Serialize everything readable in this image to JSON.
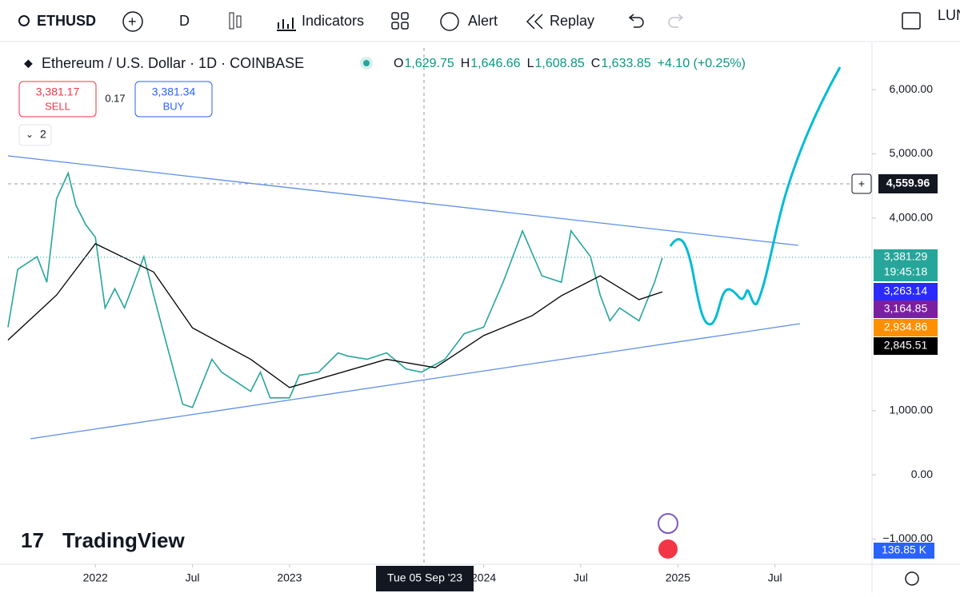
{
  "toolbar": {
    "symbol": "ETHUSD",
    "interval": "D",
    "indicators": "Indicators",
    "alert": "Alert",
    "replay": "Replay",
    "right_text": "LUN"
  },
  "legend": {
    "title": "Ethereum / U.S. Dollar · 1D · COINBASE",
    "ohlc": [
      {
        "key": "O",
        "value": "1,629.75"
      },
      {
        "key": "H",
        "value": "1,646.66"
      },
      {
        "key": "L",
        "value": "1,608.85"
      },
      {
        "key": "C",
        "value": "1,633.85"
      }
    ],
    "change": "+4.10 (+0.25%)",
    "sell_price": "3,381.17",
    "sell": "SELL",
    "spread": "0.17",
    "buy_price": "3,381.34",
    "buy": "BUY",
    "indicator_count": "2"
  },
  "price_tags": {
    "crosshair": "4,559.96",
    "last": "3,381.29",
    "countdown": "19:45:18",
    "ma1": "3,263.14",
    "ma2": "3,164.85",
    "ma3": "2,934.86",
    "ma4": "2,845.51",
    "volume": "136.85 K"
  },
  "crosshair_date": "Tue 05 Sep '23",
  "logo": "TradingView",
  "chart_data": {
    "type": "line",
    "xlim": [
      2021.55,
      2026.0
    ],
    "xticks": [
      {
        "value": 2022,
        "label": "2022"
      },
      {
        "value": 2022.5,
        "label": "Jul"
      },
      {
        "value": 2023,
        "label": "2023"
      },
      {
        "value": 2024,
        "label": "2024"
      },
      {
        "value": 2024.5,
        "label": "Jul"
      },
      {
        "value": 2025,
        "label": "2025"
      },
      {
        "value": 2025.5,
        "label": "Jul"
      }
    ],
    "ylim": [
      -1380,
      6650
    ],
    "yticks": [
      {
        "value": 6000,
        "label": "6,000.00"
      },
      {
        "value": 5000,
        "label": "5,000.00"
      },
      {
        "value": 4000,
        "label": "4,000.00"
      },
      {
        "value": 1000,
        "label": "1,000.00"
      },
      {
        "value": 0,
        "label": "0.00"
      },
      {
        "value": -1000,
        "label": "−1,000.00"
      }
    ],
    "series": [
      {
        "x": [
          2021.55,
          2021.6,
          2021.7,
          2021.75,
          2021.8,
          2021.86,
          2021.9,
          2021.95,
          2022.0,
          2022.05,
          2022.1,
          2022.15,
          2022.25,
          2022.3,
          2022.37,
          2022.45,
          2022.5,
          2022.6,
          2022.65,
          2022.7,
          2022.8,
          2022.85,
          2022.9,
          2023.0,
          2023.05,
          2023.15,
          2023.25,
          2023.3,
          2023.4,
          2023.5,
          2023.6,
          2023.68,
          2023.8,
          2023.9,
          2024.0,
          2024.1,
          2024.2,
          2024.3,
          2024.4,
          2024.45,
          2024.55,
          2024.6,
          2024.65,
          2024.7,
          2024.8,
          2024.88,
          2024.92
        ],
        "values": [
          2300,
          3200,
          3400,
          3000,
          4300,
          4700,
          4200,
          3900,
          3700,
          2600,
          2900,
          2600,
          3400,
          2800,
          2000,
          1100,
          1050,
          1800,
          1600,
          1500,
          1300,
          1600,
          1200,
          1200,
          1550,
          1600,
          1900,
          1850,
          1800,
          1900,
          1650,
          1600,
          1800,
          2200,
          2300,
          3000,
          3800,
          3100,
          3000,
          3800,
          3400,
          2800,
          2400,
          2600,
          2400,
          3000,
          3380
        ],
        "color": "#26a69a"
      },
      {
        "x": [
          2021.55,
          2021.8,
          2022.0,
          2022.3,
          2022.5,
          2022.8,
          2023.0,
          2023.5,
          2023.75,
          2024.0,
          2024.25,
          2024.4,
          2024.6,
          2024.8,
          2024.92
        ],
        "values": [
          2100,
          2800,
          3600,
          3160,
          2290,
          1800,
          1360,
          1800,
          1670,
          2170,
          2480,
          2790,
          3100,
          2730,
          2850
        ],
        "color": "#000000"
      }
    ]
  }
}
